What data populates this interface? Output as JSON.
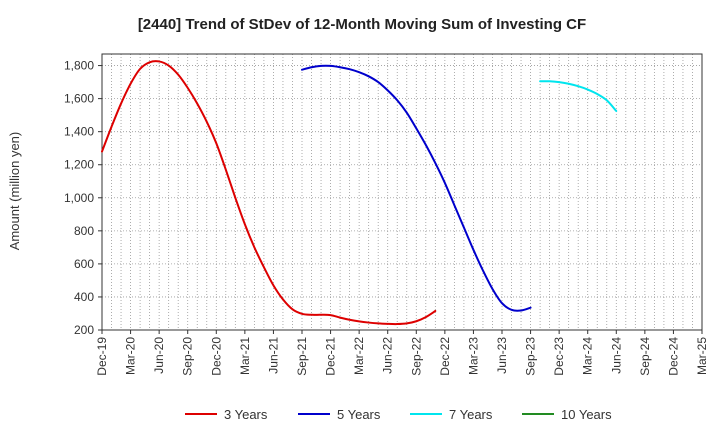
{
  "chart_data": {
    "type": "line",
    "title": "[2440]  Trend of StDev of 12-Month Moving Sum of Investing CF",
    "ylabel": "Amount (million yen)",
    "xlabel": "",
    "ylim": [
      200,
      1870
    ],
    "yticks": [
      200,
      400,
      600,
      800,
      1000,
      1200,
      1400,
      1600,
      1800
    ],
    "ytick_labels": [
      "200",
      "400",
      "600",
      "800",
      "1,000",
      "1,200",
      "1,400",
      "1,600",
      "1,800"
    ],
    "x_tick_labels": [
      "Dec-19",
      "Mar-20",
      "Jun-20",
      "Sep-20",
      "Dec-20",
      "Mar-21",
      "Jun-21",
      "Sep-21",
      "Dec-21",
      "Mar-22",
      "Jun-22",
      "Sep-22",
      "Dec-22",
      "Mar-23",
      "Jun-23",
      "Sep-23",
      "Dec-23",
      "Mar-24",
      "Jun-24",
      "Sep-24",
      "Dec-24",
      "Mar-25"
    ],
    "grid": true,
    "legend_placement": "bottom",
    "series": [
      {
        "name": "3 Years",
        "color": "#dd0000",
        "start_index": 0,
        "values": [
          1280,
          1430,
          1570,
          1690,
          1780,
          1820,
          1825,
          1800,
          1745,
          1665,
          1570,
          1460,
          1330,
          1170,
          1000,
          840,
          700,
          580,
          470,
          385,
          325,
          298,
          292,
          292,
          290,
          275,
          262,
          252,
          245,
          240,
          237,
          236,
          240,
          253,
          278,
          315
        ]
      },
      {
        "name": "5 Years",
        "color": "#0000cc",
        "start_index": 21,
        "values": [
          1775,
          1790,
          1798,
          1798,
          1790,
          1778,
          1760,
          1735,
          1700,
          1650,
          1590,
          1515,
          1420,
          1320,
          1210,
          1090,
          955,
          820,
          685,
          560,
          448,
          362,
          322,
          318,
          335
        ]
      },
      {
        "name": "7 Years",
        "color": "#00e5ee",
        "start_index": 46,
        "values": [
          1705,
          1705,
          1700,
          1690,
          1675,
          1655,
          1628,
          1590,
          1525
        ]
      },
      {
        "name": "10 Years",
        "color": "#228b22",
        "start_index": 0,
        "values": []
      }
    ]
  }
}
